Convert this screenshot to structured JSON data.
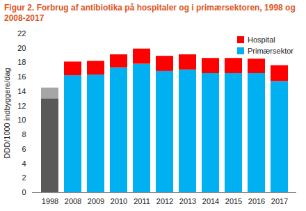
{
  "chart_data": {
    "type": "bar",
    "stacked": true,
    "title": "Figur 2. Forbrug af antibiotika på hospitaler og i primærsektoren, 1998 og 2008-2017",
    "ylabel": "DDD/1000 indbyggere/dag",
    "categories": [
      "1998",
      "2008",
      "2009",
      "2010",
      "2011",
      "2012",
      "2013",
      "2014",
      "2015",
      "2016",
      "2017"
    ],
    "series": [
      {
        "name": "Primærsektor",
        "color": "#00B0F0",
        "colors": [
          "#595959",
          "#00B0F0",
          "#00B0F0",
          "#00B0F0",
          "#00B0F0",
          "#00B0F0",
          "#00B0F0",
          "#00B0F0",
          "#00B0F0",
          "#00B0F0",
          "#00B0F0"
        ],
        "values": [
          13.0,
          16.2,
          16.3,
          17.3,
          17.8,
          16.8,
          17.0,
          16.5,
          16.5,
          16.5,
          15.4
        ]
      },
      {
        "name": "Hospital",
        "color": "#FF0000",
        "colors": [
          "#A6A6A6",
          "#FF0000",
          "#FF0000",
          "#FF0000",
          "#FF0000",
          "#FF0000",
          "#FF0000",
          "#FF0000",
          "#FF0000",
          "#FF0000",
          "#FF0000"
        ],
        "values": [
          1.5,
          1.9,
          1.9,
          1.8,
          2.1,
          2.1,
          2.1,
          2.1,
          2.1,
          2.0,
          2.2
        ]
      }
    ],
    "ylim": [
      0,
      22
    ],
    "yticks": [
      0,
      2,
      4,
      6,
      8,
      10,
      12,
      14,
      16,
      18,
      20,
      22
    ],
    "grid": false,
    "legend": "upper right"
  }
}
